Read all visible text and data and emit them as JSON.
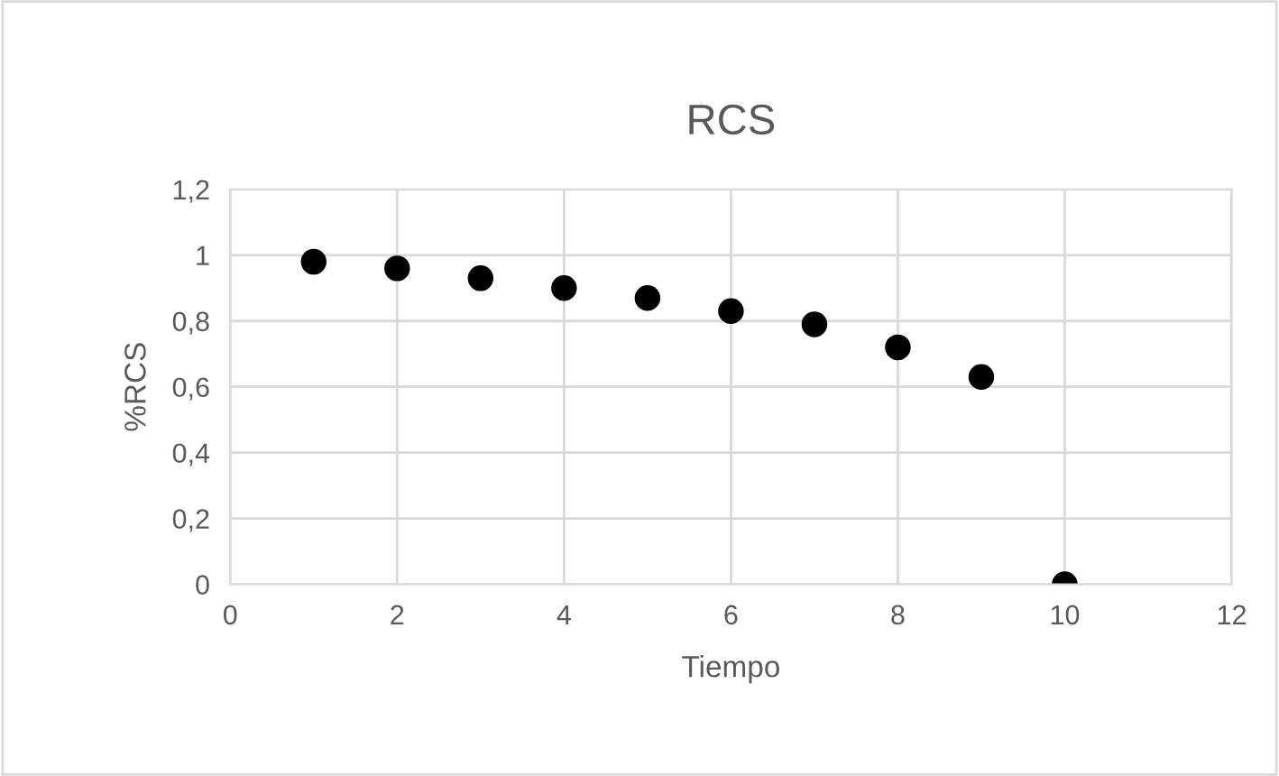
{
  "chart_data": {
    "type": "scatter",
    "title": "RCS",
    "xlabel": "Tiempo",
    "ylabel": "%RCS",
    "x": [
      1,
      2,
      3,
      4,
      5,
      6,
      7,
      8,
      9,
      10
    ],
    "series": [
      {
        "color": "#000000",
        "values": [
          0.98,
          0.96,
          0.93,
          0.9,
          0.87,
          0.83,
          0.79,
          0.72,
          0.63,
          0
        ]
      }
    ],
    "xlim": [
      0,
      12
    ],
    "xticks": [
      0,
      2,
      4,
      6,
      8,
      10,
      12
    ],
    "ylim": [
      0,
      1.2
    ],
    "yticks": [
      0,
      {
        "value": 0.2,
        "label": "0,2"
      },
      {
        "value": 0.4,
        "label": "0,4"
      },
      {
        "value": 0.6,
        "label": "0,6"
      },
      {
        "value": 0.8,
        "label": "0,8"
      },
      1,
      {
        "value": 1.2,
        "label": "1,2"
      }
    ],
    "grid": true,
    "marker": "circle",
    "legend": false
  }
}
